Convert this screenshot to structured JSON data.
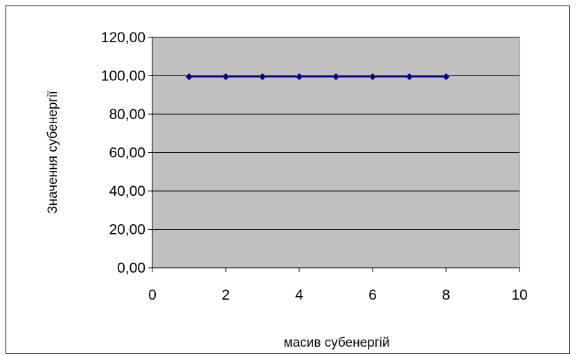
{
  "chart_data": {
    "type": "scatter",
    "title": "",
    "xlabel": "масив субенергій",
    "ylabel": "Значення субенергії",
    "xlim": [
      0,
      10
    ],
    "ylim": [
      0,
      120
    ],
    "x_ticks": [
      0,
      2,
      4,
      6,
      8,
      10
    ],
    "x_tick_labels": [
      "0",
      "2",
      "4",
      "6",
      "8",
      "10"
    ],
    "y_ticks": [
      0,
      20,
      40,
      60,
      80,
      100,
      120
    ],
    "y_tick_labels": [
      "0,00",
      "20,00",
      "40,00",
      "60,00",
      "80,00",
      "100,00",
      "120,00"
    ],
    "grid": "horizontal",
    "legend": "none",
    "series": [
      {
        "x": [
          1,
          2,
          3,
          4,
          5,
          6,
          7,
          8
        ],
        "y": [
          99.5,
          99.5,
          99.5,
          99.5,
          99.5,
          99.5,
          99.5,
          99.5
        ],
        "marker": "diamond",
        "line": true,
        "color": "#000080"
      }
    ],
    "colors": {
      "plot_background": "#c0c0c0",
      "gridline": "#000000",
      "series": "#000080"
    }
  }
}
